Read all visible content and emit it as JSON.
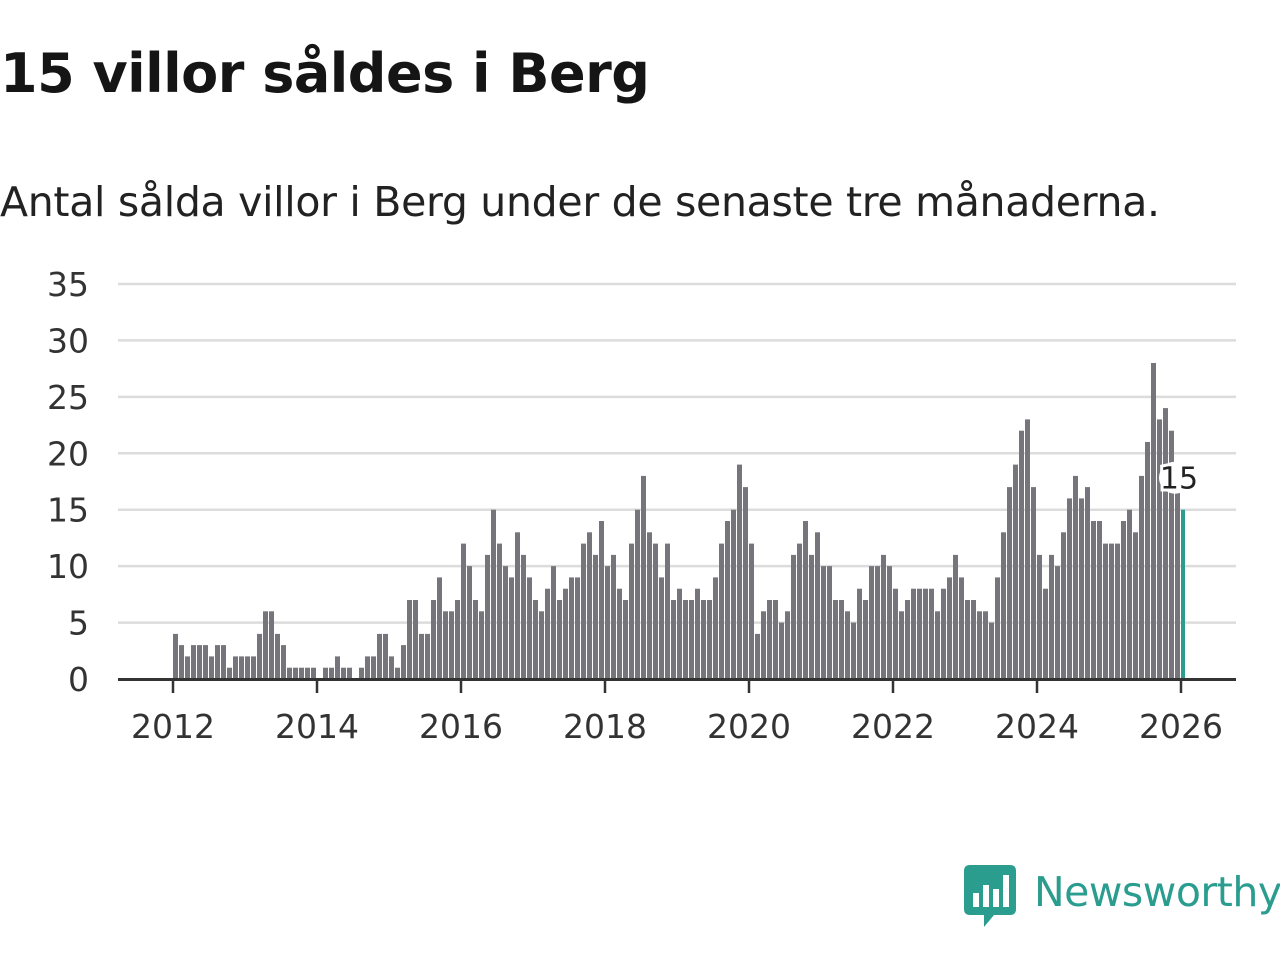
{
  "chart_data": {
    "type": "bar",
    "title": "15 villor såldes i Berg",
    "subtitle": "Antal sålda villor i Berg under de senaste tre månaderna.",
    "xlabel": "",
    "ylabel": "",
    "ylim": [
      0,
      35
    ],
    "yticks": [
      "0",
      "5",
      "10",
      "15",
      "20",
      "25",
      "30",
      "35"
    ],
    "xticks": [
      "2012",
      "2014",
      "2016",
      "2018",
      "2020",
      "2022",
      "2024",
      "2026"
    ],
    "start": "2012-01",
    "grid": true,
    "legend": "none",
    "bar_color": "#76757c",
    "highlight_color": "#2a9d8f",
    "values": [
      4,
      3,
      2,
      3,
      3,
      3,
      2,
      3,
      3,
      1,
      2,
      2,
      2,
      2,
      4,
      6,
      6,
      4,
      3,
      1,
      1,
      1,
      1,
      1,
      0,
      1,
      1,
      2,
      1,
      1,
      0,
      1,
      2,
      2,
      4,
      4,
      2,
      1,
      3,
      7,
      7,
      4,
      4,
      7,
      9,
      6,
      6,
      7,
      12,
      10,
      7,
      6,
      11,
      15,
      12,
      10,
      9,
      13,
      11,
      9,
      7,
      6,
      8,
      10,
      7,
      8,
      9,
      9,
      12,
      13,
      11,
      14,
      10,
      11,
      8,
      7,
      12,
      15,
      18,
      13,
      12,
      9,
      12,
      7,
      8,
      7,
      7,
      8,
      7,
      7,
      9,
      12,
      14,
      15,
      19,
      17,
      12,
      4,
      6,
      7,
      7,
      5,
      6,
      11,
      12,
      14,
      11,
      13,
      10,
      10,
      7,
      7,
      6,
      5,
      8,
      7,
      10,
      10,
      11,
      10,
      8,
      6,
      7,
      8,
      8,
      8,
      8,
      6,
      8,
      9,
      11,
      9,
      7,
      7,
      6,
      6,
      5,
      9,
      13,
      17,
      19,
      22,
      23,
      17,
      11,
      8,
      11,
      10,
      13,
      16,
      18,
      16,
      17,
      14,
      14,
      12,
      12,
      12,
      14,
      15,
      13,
      18,
      21,
      28,
      23,
      24,
      22,
      17,
      15
    ],
    "annotation": {
      "label": "15",
      "value": 15,
      "at": "last"
    }
  },
  "brand": {
    "name": "Newsworthy",
    "color": "#2a9d8f",
    "icon": "newsworthy-logo-icon"
  }
}
